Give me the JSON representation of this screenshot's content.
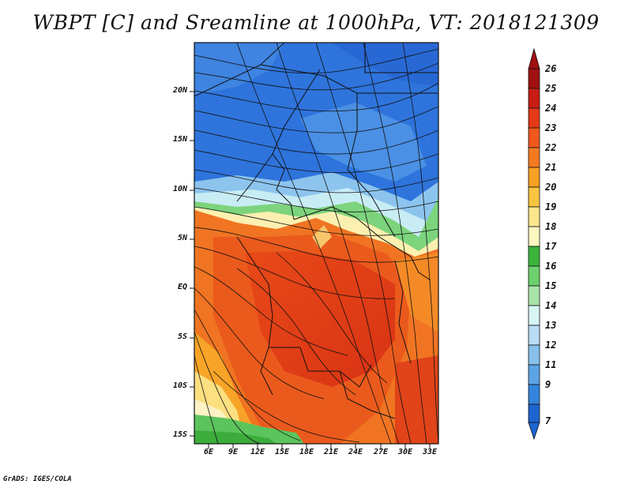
{
  "title": "WBPT [C] and Sreamline at 1000hPa, VT: 2018121309",
  "credit": "GrADS: IGES/COLA",
  "map": {
    "lat_labels": [
      "20N",
      "15N",
      "10N",
      "5N",
      "EQ",
      "5S",
      "10S",
      "15S"
    ],
    "lon_labels": [
      "6E",
      "9E",
      "12E",
      "15E",
      "18E",
      "21E",
      "24E",
      "27E",
      "30E",
      "33E"
    ]
  },
  "colorbar": {
    "labels": [
      "26",
      "25",
      "24",
      "23",
      "22",
      "21",
      "20",
      "19",
      "18",
      "17",
      "16",
      "15",
      "14",
      "13",
      "12",
      "11",
      "9",
      "7"
    ],
    "colors": [
      "#a01010",
      "#c81c14",
      "#e43a16",
      "#f0581c",
      "#f47a20",
      "#f8a024",
      "#f8c440",
      "#fce68c",
      "#fcf6c0",
      "#3cb43c",
      "#6cd06c",
      "#a8e4a8",
      "#d8f4f4",
      "#b8dcf4",
      "#88c0ec",
      "#5ca4e4",
      "#3484dc",
      "#1e64d0"
    ]
  }
}
